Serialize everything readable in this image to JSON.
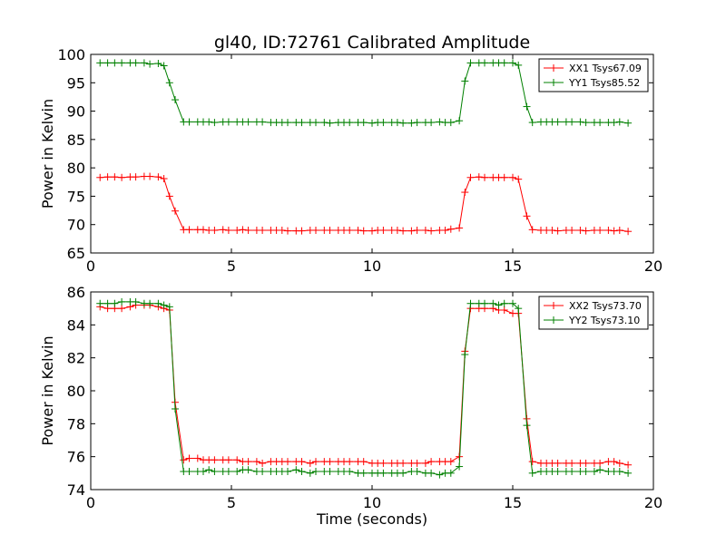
{
  "figure": {
    "title": "gl40, ID:72761 Calibrated Amplitude",
    "xlabel": "Time (seconds)"
  },
  "chart_data": [
    {
      "type": "line",
      "ylabel": "Power in Kelvin",
      "xlim": [
        0,
        20
      ],
      "ylim": [
        65,
        100
      ],
      "xticks": [
        0,
        5,
        10,
        15,
        20
      ],
      "yticks": [
        65,
        70,
        75,
        80,
        85,
        90,
        95,
        100
      ],
      "grid": false,
      "legend": "top-right",
      "x": [
        0.33,
        0.6,
        0.85,
        1.1,
        1.4,
        1.6,
        1.9,
        2.1,
        2.4,
        2.6,
        2.8,
        3.0,
        3.3,
        3.5,
        3.8,
        4.0,
        4.2,
        4.4,
        4.7,
        4.9,
        5.2,
        5.4,
        5.6,
        5.9,
        6.1,
        6.4,
        6.6,
        6.8,
        7.0,
        7.3,
        7.5,
        7.8,
        8.0,
        8.3,
        8.5,
        8.8,
        9.0,
        9.2,
        9.5,
        9.7,
        10.0,
        10.2,
        10.4,
        10.7,
        10.9,
        11.1,
        11.4,
        11.6,
        11.9,
        12.1,
        12.4,
        12.6,
        12.8,
        13.1,
        13.3,
        13.5,
        13.8,
        14.0,
        14.3,
        14.5,
        14.7,
        15.0,
        15.2,
        15.5,
        15.7,
        16.0,
        16.2,
        16.4,
        16.6,
        16.9,
        17.1,
        17.4,
        17.6,
        17.9,
        18.1,
        18.4,
        18.6,
        18.8,
        19.1
      ],
      "series": [
        {
          "name": "XX1 Tsys67.09",
          "color": "#ff0000",
          "values": [
            78.3,
            78.4,
            78.4,
            78.3,
            78.4,
            78.4,
            78.5,
            78.5,
            78.4,
            78.1,
            75,
            72.4,
            69.1,
            69.1,
            69.1,
            69.1,
            69.0,
            69.0,
            69.1,
            69.0,
            69.0,
            69.1,
            69.0,
            69.0,
            69.0,
            69.0,
            69.0,
            69.0,
            68.9,
            68.9,
            68.9,
            69.0,
            69.0,
            69.0,
            69.0,
            69.0,
            69.0,
            69.0,
            69.0,
            68.9,
            68.9,
            69.0,
            69.0,
            69.0,
            69.0,
            68.9,
            68.9,
            69.0,
            69.0,
            68.9,
            69.0,
            69.0,
            69.2,
            69.4,
            75.7,
            78.3,
            78.4,
            78.3,
            78.3,
            78.3,
            78.3,
            78.3,
            78.0,
            71.5,
            69.1,
            69.0,
            69.0,
            69.0,
            68.9,
            69.0,
            69.0,
            69.0,
            68.9,
            69.0,
            69.0,
            69.0,
            68.9,
            69.0,
            68.8
          ]
        },
        {
          "name": "YY1 Tsys85.52",
          "color": "#008000",
          "values": [
            98.5,
            98.5,
            98.5,
            98.5,
            98.5,
            98.5,
            98.5,
            98.3,
            98.4,
            98.0,
            95,
            92.0,
            88.1,
            88.1,
            88.1,
            88.1,
            88.1,
            88.0,
            88.1,
            88.1,
            88.1,
            88.1,
            88.1,
            88.1,
            88.1,
            88.0,
            88.0,
            88.0,
            88.0,
            88.0,
            88.0,
            88.0,
            88.0,
            88.0,
            87.9,
            88.0,
            88.0,
            88.0,
            88.0,
            88.0,
            87.9,
            88.0,
            88.0,
            88.0,
            88.0,
            87.9,
            87.9,
            88.0,
            88.0,
            88.0,
            88.1,
            88.0,
            88.0,
            88.3,
            95.3,
            98.5,
            98.5,
            98.5,
            98.5,
            98.5,
            98.5,
            98.5,
            98.1,
            90.8,
            88.0,
            88.1,
            88.1,
            88.1,
            88.1,
            88.1,
            88.1,
            88.1,
            88.0,
            88.0,
            88.0,
            88.0,
            88.0,
            88.1,
            87.9
          ]
        }
      ]
    },
    {
      "type": "line",
      "ylabel": "Power in Kelvin",
      "xlim": [
        0,
        20
      ],
      "ylim": [
        74,
        86
      ],
      "xticks": [
        0,
        5,
        10,
        15,
        20
      ],
      "yticks": [
        74,
        76,
        78,
        80,
        82,
        84,
        86
      ],
      "grid": false,
      "legend": "top-right",
      "x": [
        0.33,
        0.6,
        0.85,
        1.1,
        1.4,
        1.6,
        1.9,
        2.1,
        2.4,
        2.6,
        2.8,
        3.0,
        3.3,
        3.5,
        3.8,
        4.0,
        4.2,
        4.4,
        4.7,
        4.9,
        5.2,
        5.4,
        5.6,
        5.9,
        6.1,
        6.4,
        6.6,
        6.8,
        7.0,
        7.3,
        7.5,
        7.8,
        8.0,
        8.3,
        8.5,
        8.8,
        9.0,
        9.2,
        9.5,
        9.7,
        10.0,
        10.2,
        10.4,
        10.7,
        10.9,
        11.1,
        11.4,
        11.6,
        11.9,
        12.1,
        12.4,
        12.6,
        12.8,
        13.1,
        13.3,
        13.5,
        13.8,
        14.0,
        14.3,
        14.5,
        14.7,
        15.0,
        15.2,
        15.5,
        15.7,
        16.0,
        16.2,
        16.4,
        16.6,
        16.9,
        17.1,
        17.4,
        17.6,
        17.9,
        18.1,
        18.4,
        18.6,
        18.8,
        19.1
      ],
      "series": [
        {
          "name": "XX2 Tsys73.70",
          "color": "#ff0000",
          "values": [
            85.1,
            85.0,
            85.0,
            85.0,
            85.1,
            85.2,
            85.2,
            85.2,
            85.1,
            85.0,
            84.9,
            79.3,
            75.8,
            75.9,
            75.9,
            75.8,
            75.8,
            75.8,
            75.8,
            75.8,
            75.8,
            75.7,
            75.7,
            75.7,
            75.6,
            75.7,
            75.7,
            75.7,
            75.7,
            75.7,
            75.7,
            75.6,
            75.7,
            75.7,
            75.7,
            75.7,
            75.7,
            75.7,
            75.7,
            75.7,
            75.6,
            75.6,
            75.6,
            75.6,
            75.6,
            75.6,
            75.6,
            75.6,
            75.6,
            75.7,
            75.7,
            75.7,
            75.7,
            76.0,
            82.4,
            85.0,
            85.0,
            85.0,
            85.0,
            84.9,
            84.9,
            84.7,
            84.7,
            78.3,
            75.7,
            75.6,
            75.6,
            75.6,
            75.6,
            75.6,
            75.6,
            75.6,
            75.6,
            75.6,
            75.6,
            75.7,
            75.7,
            75.6,
            75.5
          ]
        },
        {
          "name": "YY2 Tsys73.10",
          "color": "#008000",
          "values": [
            85.3,
            85.3,
            85.3,
            85.4,
            85.4,
            85.4,
            85.3,
            85.3,
            85.3,
            85.2,
            85.1,
            78.9,
            75.1,
            75.1,
            75.1,
            75.1,
            75.2,
            75.1,
            75.1,
            75.1,
            75.1,
            75.2,
            75.2,
            75.1,
            75.1,
            75.1,
            75.1,
            75.1,
            75.1,
            75.2,
            75.1,
            75.0,
            75.1,
            75.1,
            75.1,
            75.1,
            75.1,
            75.1,
            75.0,
            75.0,
            75.0,
            75.0,
            75.0,
            75.0,
            75.0,
            75.0,
            75.1,
            75.1,
            75.0,
            75.0,
            74.9,
            75.0,
            75.0,
            75.4,
            82.2,
            85.3,
            85.3,
            85.3,
            85.3,
            85.2,
            85.3,
            85.3,
            85.0,
            77.9,
            75.0,
            75.1,
            75.1,
            75.1,
            75.1,
            75.1,
            75.1,
            75.1,
            75.1,
            75.1,
            75.2,
            75.1,
            75.1,
            75.1,
            75.0
          ]
        }
      ]
    }
  ]
}
